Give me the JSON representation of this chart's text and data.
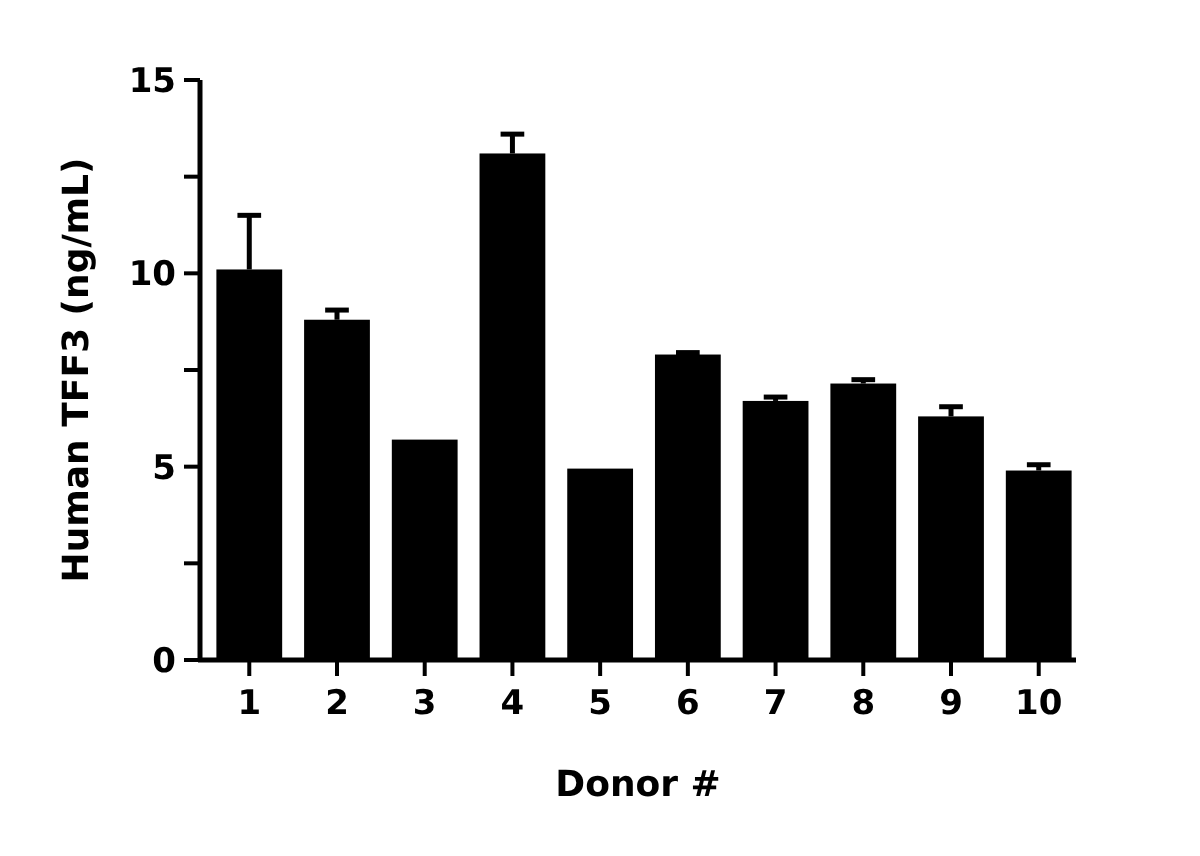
{
  "chart_data": {
    "type": "bar",
    "xlabel": "Donor #",
    "ylabel": "Human TFF3 (ng/mL)",
    "categories": [
      "1",
      "2",
      "3",
      "4",
      "5",
      "6",
      "7",
      "8",
      "9",
      "10"
    ],
    "values": [
      10.1,
      8.8,
      5.7,
      13.1,
      4.95,
      7.9,
      6.7,
      7.15,
      6.3,
      4.9
    ],
    "errors": [
      [
        10.1,
        11.5
      ],
      [
        8.8,
        9.05
      ],
      null,
      [
        13.1,
        13.6
      ],
      null,
      [
        7.9,
        7.95
      ],
      [
        6.7,
        6.8
      ],
      [
        7.15,
        7.25
      ],
      [
        6.3,
        6.55
      ],
      [
        4.9,
        5.05
      ]
    ],
    "color": "#000000",
    "ylim": [
      0,
      15
    ],
    "yticks": [
      0,
      {
        "value": 2.5,
        "label": null
      },
      5,
      {
        "value": 7.5,
        "label": null
      },
      10,
      {
        "value": 12.5,
        "label": null
      },
      15
    ],
    "grid": false
  }
}
